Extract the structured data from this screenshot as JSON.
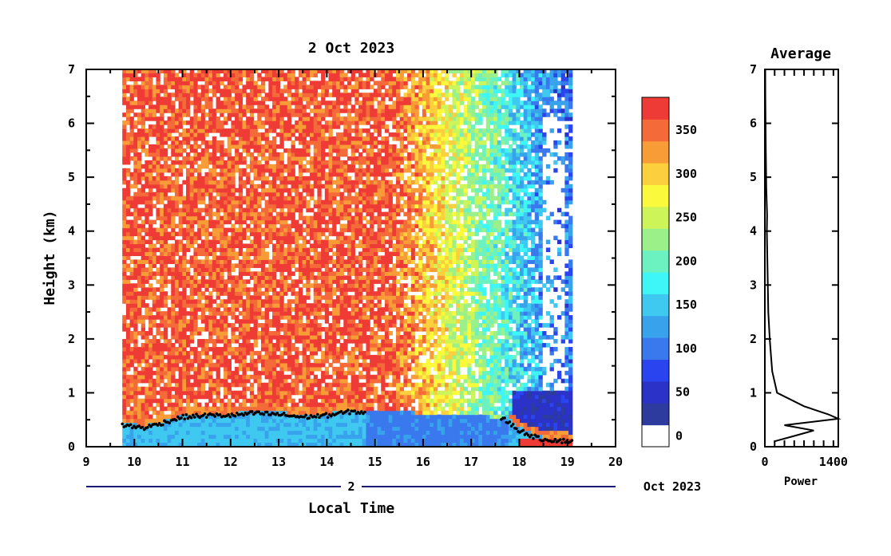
{
  "main_title": "2 Oct 2023",
  "side_title": "Average",
  "xlabel": "Local Time",
  "ylabel": "Height (km)",
  "date_day": "2",
  "date_tail": "Oct 2023",
  "side_xlabel": "Power",
  "chart_data": [
    {
      "type": "heatmap",
      "title": "2 Oct 2023",
      "xlabel": "Local Time",
      "ylabel": "Height (km)",
      "xlim": [
        9,
        20
      ],
      "ylim": [
        0,
        7
      ],
      "x_ticks": [
        "9",
        "10",
        "11",
        "12",
        "13",
        "14",
        "15",
        "16",
        "17",
        "18",
        "19",
        "20"
      ],
      "y_ticks": [
        "0",
        "1",
        "2",
        "3",
        "4",
        "5",
        "6",
        "7"
      ],
      "data_time_range": [
        9.75,
        19.1
      ],
      "colorbar": {
        "levels": [
          0,
          25,
          50,
          75,
          100,
          125,
          150,
          175,
          200,
          225,
          250,
          275,
          300,
          325,
          350,
          375
        ],
        "tick_labels": [
          "0",
          "50",
          "100",
          "150",
          "200",
          "250",
          "300",
          "350"
        ],
        "colors": [
          "#ffffff",
          "#2d3a9e",
          "#2a32c8",
          "#2a44f0",
          "#3a78ee",
          "#38a2ec",
          "#3fc8f0",
          "#3ff6f6",
          "#6cf2c0",
          "#9cf08a",
          "#cdf55a",
          "#fbf93b",
          "#fccf3d",
          "#f89c37",
          "#f46b39",
          "#ef3b36"
        ]
      },
      "boundary_layer_top_km": [
        {
          "time": 9.75,
          "height": 0.4
        },
        {
          "time": 10.2,
          "height": 0.35
        },
        {
          "time": 10.5,
          "height": 0.42
        },
        {
          "time": 11.0,
          "height": 0.55
        },
        {
          "time": 11.5,
          "height": 0.58
        },
        {
          "time": 12.0,
          "height": 0.58
        },
        {
          "time": 12.5,
          "height": 0.62
        },
        {
          "time": 13.0,
          "height": 0.6
        },
        {
          "time": 13.5,
          "height": 0.55
        },
        {
          "time": 14.0,
          "height": 0.58
        },
        {
          "time": 14.5,
          "height": 0.65
        },
        {
          "time": 17.7,
          "height": 0.5
        },
        {
          "time": 18.0,
          "height": 0.3
        },
        {
          "time": 18.4,
          "height": 0.15
        },
        {
          "time": 19.0,
          "height": 0.1
        }
      ]
    },
    {
      "type": "line",
      "title": "Average",
      "xlabel": "Power",
      "ylabel": "Height (km)",
      "xlim": [
        0,
        1500
      ],
      "ylim": [
        0,
        7
      ],
      "x_ticks": [
        "0",
        "1400"
      ],
      "y_ticks": [
        "0",
        "1",
        "2",
        "3",
        "4",
        "5",
        "6",
        "7"
      ],
      "x": [
        200,
        600,
        1000,
        400,
        1500,
        1300,
        800,
        250,
        150,
        100,
        70,
        60,
        50,
        40,
        45,
        30,
        20,
        15,
        10,
        8
      ],
      "y": [
        0.1,
        0.2,
        0.3,
        0.4,
        0.52,
        0.6,
        0.75,
        1.0,
        1.4,
        2.0,
        2.5,
        3.0,
        3.5,
        4.0,
        4.3,
        4.8,
        5.5,
        6.0,
        6.5,
        7.0
      ]
    }
  ]
}
